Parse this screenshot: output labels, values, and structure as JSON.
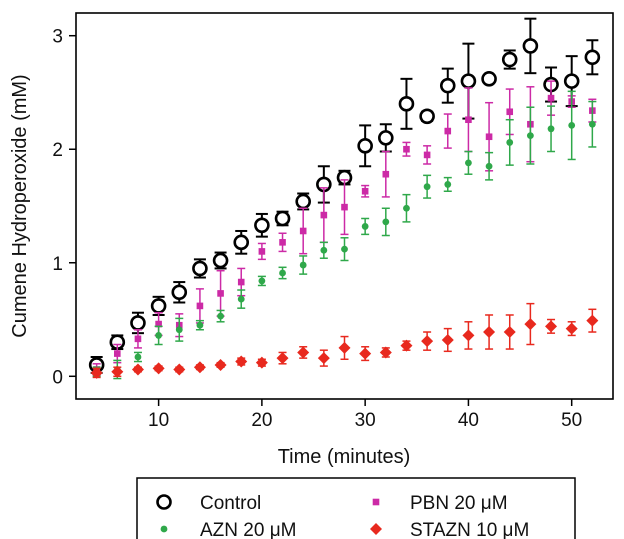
{
  "chart_data": {
    "type": "scatter",
    "xlabel": "Time (minutes)",
    "ylabel": "Cumene Hydroperoxide (mM)",
    "xlim": [
      2,
      54
    ],
    "ylim": [
      -0.2,
      3.2
    ],
    "xticks": [
      10,
      20,
      30,
      40,
      50
    ],
    "yticks": [
      0,
      1,
      2,
      3
    ],
    "legend_position": "bottom",
    "series": [
      {
        "name": "Control",
        "color": "#000000",
        "marker": "open-circle",
        "points": [
          {
            "x": 4,
            "y": 0.1,
            "err": 0.07
          },
          {
            "x": 6,
            "y": 0.3,
            "err": 0.06
          },
          {
            "x": 8,
            "y": 0.47,
            "err": 0.09
          },
          {
            "x": 10,
            "y": 0.62,
            "err": 0.08
          },
          {
            "x": 12,
            "y": 0.74,
            "err": 0.09
          },
          {
            "x": 14,
            "y": 0.95,
            "err": 0.08
          },
          {
            "x": 16,
            "y": 1.02,
            "err": 0.07
          },
          {
            "x": 18,
            "y": 1.18,
            "err": 0.1
          },
          {
            "x": 20,
            "y": 1.33,
            "err": 0.1
          },
          {
            "x": 22,
            "y": 1.39,
            "err": 0.06
          },
          {
            "x": 24,
            "y": 1.54,
            "err": 0.07
          },
          {
            "x": 26,
            "y": 1.69,
            "err": 0.16
          },
          {
            "x": 28,
            "y": 1.75,
            "err": 0.06
          },
          {
            "x": 30,
            "y": 2.03,
            "err": 0.18
          },
          {
            "x": 32,
            "y": 2.1,
            "err": 0.12
          },
          {
            "x": 34,
            "y": 2.4,
            "err": 0.22
          },
          {
            "x": 36,
            "y": 2.29,
            "err": 0.04
          },
          {
            "x": 38,
            "y": 2.56,
            "err": 0.15
          },
          {
            "x": 40,
            "y": 2.6,
            "err": 0.33
          },
          {
            "x": 42,
            "y": 2.62,
            "err": 0.03
          },
          {
            "x": 44,
            "y": 2.79,
            "err": 0.08
          },
          {
            "x": 46,
            "y": 2.91,
            "err": 0.24
          },
          {
            "x": 48,
            "y": 2.57,
            "err": 0.15
          },
          {
            "x": 50,
            "y": 2.6,
            "err": 0.22
          },
          {
            "x": 52,
            "y": 2.81,
            "err": 0.15
          }
        ]
      },
      {
        "name": "PBN 20 μM",
        "color": "#cc2aa6",
        "marker": "square",
        "points": [
          {
            "x": 4,
            "y": 0.06,
            "err": 0.05
          },
          {
            "x": 6,
            "y": 0.2,
            "err": 0.08
          },
          {
            "x": 8,
            "y": 0.33,
            "err": 0.08
          },
          {
            "x": 10,
            "y": 0.46,
            "err": 0.1
          },
          {
            "x": 12,
            "y": 0.45,
            "err": 0.1
          },
          {
            "x": 14,
            "y": 0.62,
            "err": 0.15
          },
          {
            "x": 16,
            "y": 0.73,
            "err": 0.2
          },
          {
            "x": 18,
            "y": 0.83,
            "err": 0.12
          },
          {
            "x": 20,
            "y": 1.1,
            "err": 0.07
          },
          {
            "x": 22,
            "y": 1.18,
            "err": 0.08
          },
          {
            "x": 24,
            "y": 1.28,
            "err": 0.2
          },
          {
            "x": 26,
            "y": 1.42,
            "err": 0.24
          },
          {
            "x": 28,
            "y": 1.49,
            "err": 0.24
          },
          {
            "x": 30,
            "y": 1.63,
            "err": 0.05
          },
          {
            "x": 32,
            "y": 1.78,
            "err": 0.2
          },
          {
            "x": 34,
            "y": 2.0,
            "err": 0.06
          },
          {
            "x": 36,
            "y": 1.95,
            "err": 0.08
          },
          {
            "x": 38,
            "y": 2.16,
            "err": 0.15
          },
          {
            "x": 40,
            "y": 2.26,
            "err": 0.28
          },
          {
            "x": 42,
            "y": 2.11,
            "err": 0.3
          },
          {
            "x": 44,
            "y": 2.33,
            "err": 0.2
          },
          {
            "x": 46,
            "y": 2.22,
            "err": 0.33
          },
          {
            "x": 48,
            "y": 2.45,
            "err": 0.15
          },
          {
            "x": 50,
            "y": 2.42,
            "err": 0.05
          },
          {
            "x": 52,
            "y": 2.34,
            "err": 0.1
          }
        ]
      },
      {
        "name": "AZN 20 μM",
        "color": "#2fa84a",
        "marker": "dot",
        "points": [
          {
            "x": 4,
            "y": 0.04,
            "err": 0.04
          },
          {
            "x": 6,
            "y": 0.06,
            "err": 0.08
          },
          {
            "x": 8,
            "y": 0.17,
            "err": 0.04
          },
          {
            "x": 10,
            "y": 0.36,
            "err": 0.08
          },
          {
            "x": 12,
            "y": 0.41,
            "err": 0.1
          },
          {
            "x": 14,
            "y": 0.45,
            "err": 0.04
          },
          {
            "x": 16,
            "y": 0.53,
            "err": 0.05
          },
          {
            "x": 18,
            "y": 0.68,
            "err": 0.08
          },
          {
            "x": 20,
            "y": 0.84,
            "err": 0.04
          },
          {
            "x": 22,
            "y": 0.91,
            "err": 0.05
          },
          {
            "x": 24,
            "y": 0.98,
            "err": 0.08
          },
          {
            "x": 26,
            "y": 1.11,
            "err": 0.07
          },
          {
            "x": 28,
            "y": 1.12,
            "err": 0.1
          },
          {
            "x": 30,
            "y": 1.32,
            "err": 0.07
          },
          {
            "x": 32,
            "y": 1.36,
            "err": 0.12
          },
          {
            "x": 34,
            "y": 1.48,
            "err": 0.12
          },
          {
            "x": 36,
            "y": 1.67,
            "err": 0.1
          },
          {
            "x": 38,
            "y": 1.69,
            "err": 0.06
          },
          {
            "x": 40,
            "y": 1.88,
            "err": 0.1
          },
          {
            "x": 42,
            "y": 1.85,
            "err": 0.12
          },
          {
            "x": 44,
            "y": 2.06,
            "err": 0.2
          },
          {
            "x": 46,
            "y": 2.12,
            "err": 0.25
          },
          {
            "x": 48,
            "y": 2.18,
            "err": 0.2
          },
          {
            "x": 50,
            "y": 2.21,
            "err": 0.3
          },
          {
            "x": 52,
            "y": 2.22,
            "err": 0.2
          }
        ]
      },
      {
        "name": "STAZN 10 μM",
        "color": "#e8291e",
        "marker": "diamond",
        "points": [
          {
            "x": 4,
            "y": 0.03,
            "err": 0.04
          },
          {
            "x": 6,
            "y": 0.04,
            "err": 0.04
          },
          {
            "x": 8,
            "y": 0.06,
            "err": 0.02
          },
          {
            "x": 10,
            "y": 0.07,
            "err": 0.02
          },
          {
            "x": 12,
            "y": 0.06,
            "err": 0.02
          },
          {
            "x": 14,
            "y": 0.08,
            "err": 0.02
          },
          {
            "x": 16,
            "y": 0.1,
            "err": 0.02
          },
          {
            "x": 18,
            "y": 0.13,
            "err": 0.03
          },
          {
            "x": 20,
            "y": 0.12,
            "err": 0.03
          },
          {
            "x": 22,
            "y": 0.16,
            "err": 0.05
          },
          {
            "x": 24,
            "y": 0.21,
            "err": 0.05
          },
          {
            "x": 26,
            "y": 0.16,
            "err": 0.07
          },
          {
            "x": 28,
            "y": 0.25,
            "err": 0.1
          },
          {
            "x": 30,
            "y": 0.2,
            "err": 0.06
          },
          {
            "x": 32,
            "y": 0.21,
            "err": 0.04
          },
          {
            "x": 34,
            "y": 0.27,
            "err": 0.04
          },
          {
            "x": 36,
            "y": 0.31,
            "err": 0.08
          },
          {
            "x": 38,
            "y": 0.32,
            "err": 0.1
          },
          {
            "x": 40,
            "y": 0.36,
            "err": 0.12
          },
          {
            "x": 42,
            "y": 0.39,
            "err": 0.15
          },
          {
            "x": 44,
            "y": 0.39,
            "err": 0.15
          },
          {
            "x": 46,
            "y": 0.46,
            "err": 0.18
          },
          {
            "x": 48,
            "y": 0.44,
            "err": 0.06
          },
          {
            "x": 50,
            "y": 0.42,
            "err": 0.06
          },
          {
            "x": 52,
            "y": 0.49,
            "err": 0.1
          }
        ]
      }
    ]
  }
}
